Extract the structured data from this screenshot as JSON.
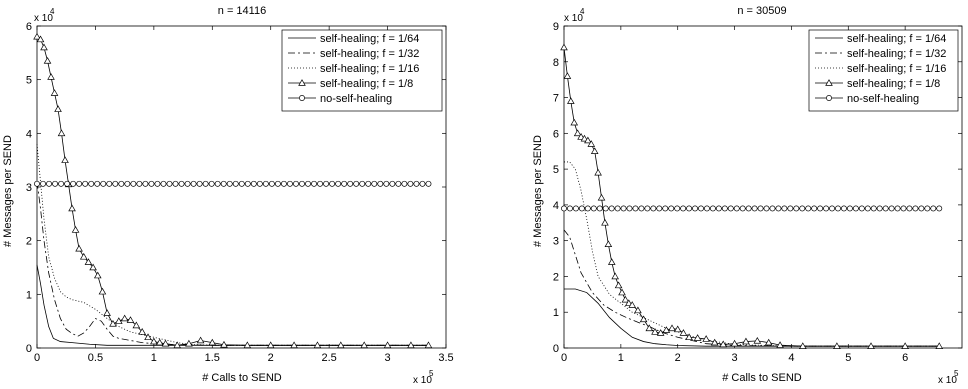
{
  "legend_entries": [
    "self-healing; f = 1/64",
    "self-healing; f = 1/32",
    "self-healing; f = 1/16",
    "self-healing; f = 1/8",
    "no-self-healing"
  ],
  "chart_data": [
    {
      "type": "line",
      "title": "n = 14116",
      "xlabel": "# Calls to SEND",
      "ylabel": "# Messages per SEND",
      "x_multiplier": "x 10",
      "x_multiplier_exp": "5",
      "y_multiplier": "x 10",
      "y_multiplier_exp": "4",
      "xlim": [
        0,
        3.5
      ],
      "ylim": [
        0,
        6
      ],
      "x_ticks": [
        "0",
        "0.5",
        "1",
        "1.5",
        "2",
        "2.5",
        "3",
        "3.5"
      ],
      "y_ticks": [
        "0",
        "1",
        "2",
        "3",
        "4",
        "5",
        "6"
      ],
      "legend_position": "top-right",
      "grid": false,
      "series": [
        {
          "name": "self-healing; f = 1/64",
          "style": "solid",
          "marker": "none",
          "x": [
            0,
            0.03,
            0.06,
            0.1,
            0.14,
            0.2,
            0.3,
            0.45,
            0.6,
            0.75,
            0.9,
            1.1,
            1.3,
            1.5,
            2,
            2.5,
            3,
            3.35
          ],
          "y": [
            1.55,
            1.2,
            0.8,
            0.4,
            0.18,
            0.12,
            0.1,
            0.07,
            0.05,
            0.05,
            0.05,
            0.05,
            0.05,
            0.05,
            0.05,
            0.05,
            0.05,
            0.05
          ]
        },
        {
          "name": "self-healing; f = 1/32",
          "style": "dashdot",
          "marker": "none",
          "x": [
            0,
            0.03,
            0.06,
            0.1,
            0.15,
            0.2,
            0.25,
            0.3,
            0.35,
            0.4,
            0.45,
            0.5,
            0.55,
            0.6,
            0.65,
            0.7,
            0.8,
            0.9,
            1.0,
            1.2,
            1.5,
            2,
            2.5,
            3,
            3.35
          ],
          "y": [
            3.1,
            2.6,
            2.0,
            1.4,
            0.9,
            0.55,
            0.35,
            0.27,
            0.22,
            0.28,
            0.4,
            0.55,
            0.5,
            0.35,
            0.22,
            0.18,
            0.14,
            0.1,
            0.08,
            0.06,
            0.05,
            0.05,
            0.05,
            0.05,
            0.05
          ]
        },
        {
          "name": "self-healing; f = 1/16",
          "style": "dotted",
          "marker": "none",
          "x": [
            0,
            0.03,
            0.06,
            0.1,
            0.15,
            0.2,
            0.25,
            0.3,
            0.4,
            0.5,
            0.6,
            0.7,
            0.8,
            0.9,
            1.0,
            1.1,
            1.2,
            1.3,
            1.5,
            2,
            2.5,
            3,
            3.35
          ],
          "y": [
            3.8,
            3.1,
            2.4,
            1.7,
            1.3,
            1.05,
            0.95,
            0.9,
            0.85,
            0.72,
            0.55,
            0.4,
            0.3,
            0.25,
            0.2,
            0.15,
            0.1,
            0.07,
            0.05,
            0.05,
            0.05,
            0.05,
            0.05
          ]
        },
        {
          "name": "self-healing; f = 1/8",
          "style": "solid",
          "marker": "triangle",
          "x": [
            0,
            0.03,
            0.06,
            0.09,
            0.12,
            0.15,
            0.18,
            0.21,
            0.24,
            0.27,
            0.3,
            0.33,
            0.36,
            0.4,
            0.44,
            0.48,
            0.52,
            0.56,
            0.6,
            0.65,
            0.7,
            0.75,
            0.8,
            0.85,
            0.9,
            0.95,
            1.0,
            1.05,
            1.1,
            1.2,
            1.3,
            1.4,
            1.5,
            1.6,
            1.8,
            2.0,
            2.2,
            2.4,
            2.6,
            2.8,
            3.0,
            3.2,
            3.35
          ],
          "y": [
            5.8,
            5.75,
            5.6,
            5.35,
            5.05,
            4.75,
            4.45,
            4.0,
            3.5,
            3.05,
            2.6,
            2.2,
            1.85,
            1.7,
            1.6,
            1.5,
            1.35,
            1.05,
            0.65,
            0.45,
            0.5,
            0.55,
            0.52,
            0.42,
            0.3,
            0.2,
            0.12,
            0.1,
            0.08,
            0.05,
            0.08,
            0.14,
            0.1,
            0.06,
            0.05,
            0.05,
            0.05,
            0.05,
            0.05,
            0.05,
            0.05,
            0.05,
            0.05
          ]
        },
        {
          "name": "no-self-healing",
          "style": "solid",
          "marker": "circle",
          "x": [
            0,
            3.35
          ],
          "y": [
            3.06,
            3.06
          ]
        }
      ]
    },
    {
      "type": "line",
      "title": "n = 30509",
      "xlabel": "# Calls to SEND",
      "ylabel": "# Messages per SEND",
      "x_multiplier": "x 10",
      "x_multiplier_exp": "5",
      "y_multiplier": "x 10",
      "y_multiplier_exp": "4",
      "xlim": [
        0,
        7
      ],
      "ylim": [
        0,
        9
      ],
      "x_ticks": [
        "0",
        "1",
        "2",
        "3",
        "4",
        "5",
        "6"
      ],
      "y_ticks": [
        "0",
        "1",
        "2",
        "3",
        "4",
        "5",
        "6",
        "7",
        "8",
        "9"
      ],
      "legend_position": "top-right",
      "grid": false,
      "series": [
        {
          "name": "self-healing; f = 1/64",
          "style": "solid",
          "marker": "none",
          "x": [
            0,
            0.2,
            0.4,
            0.6,
            0.8,
            1.0,
            1.2,
            1.4,
            1.6,
            1.8,
            2.0,
            2.5,
            3,
            4,
            5,
            6,
            6.6
          ],
          "y": [
            1.65,
            1.65,
            1.55,
            1.25,
            0.85,
            0.55,
            0.3,
            0.18,
            0.12,
            0.09,
            0.07,
            0.05,
            0.05,
            0.05,
            0.05,
            0.05,
            0.05
          ]
        },
        {
          "name": "self-healing; f = 1/32",
          "style": "dashdot",
          "marker": "none",
          "x": [
            0,
            0.1,
            0.2,
            0.3,
            0.5,
            0.7,
            0.9,
            1.1,
            1.3,
            1.5,
            1.7,
            2.0,
            2.5,
            3,
            4,
            5,
            6,
            6.6
          ],
          "y": [
            3.3,
            3.1,
            2.6,
            2.1,
            1.55,
            1.2,
            1.0,
            0.85,
            0.72,
            0.6,
            0.45,
            0.3,
            0.12,
            0.07,
            0.05,
            0.05,
            0.05,
            0.05
          ]
        },
        {
          "name": "self-healing; f = 1/16",
          "style": "dotted",
          "marker": "none",
          "x": [
            0,
            0.1,
            0.2,
            0.3,
            0.4,
            0.5,
            0.6,
            0.8,
            1.0,
            1.2,
            1.4,
            1.6,
            1.8,
            2.0,
            2.2,
            2.5,
            3,
            4,
            5,
            6,
            6.6
          ],
          "y": [
            5.2,
            5.2,
            5.0,
            4.4,
            3.6,
            2.7,
            2.0,
            1.5,
            1.25,
            1.0,
            0.85,
            0.7,
            0.55,
            0.45,
            0.35,
            0.22,
            0.1,
            0.05,
            0.05,
            0.05,
            0.05
          ]
        },
        {
          "name": "self-healing; f = 1/8",
          "style": "solid",
          "marker": "triangle",
          "x": [
            0,
            0.06,
            0.12,
            0.18,
            0.24,
            0.3,
            0.36,
            0.42,
            0.48,
            0.54,
            0.6,
            0.66,
            0.72,
            0.78,
            0.84,
            0.9,
            0.96,
            1.02,
            1.08,
            1.14,
            1.2,
            1.3,
            1.4,
            1.5,
            1.6,
            1.7,
            1.8,
            1.9,
            2.0,
            2.1,
            2.2,
            2.35,
            2.5,
            2.65,
            2.8,
            3.0,
            3.2,
            3.4,
            3.6,
            3.8,
            4.2,
            4.8,
            5.4,
            6.0,
            6.6
          ],
          "y": [
            8.4,
            7.6,
            6.9,
            6.3,
            6.0,
            5.9,
            5.85,
            5.8,
            5.7,
            5.5,
            4.9,
            4.2,
            3.5,
            2.9,
            2.4,
            2.0,
            1.75,
            1.55,
            1.35,
            1.25,
            1.2,
            1.05,
            0.8,
            0.55,
            0.45,
            0.42,
            0.5,
            0.55,
            0.52,
            0.42,
            0.3,
            0.28,
            0.25,
            0.15,
            0.1,
            0.12,
            0.18,
            0.2,
            0.15,
            0.08,
            0.05,
            0.05,
            0.05,
            0.05,
            0.05
          ]
        },
        {
          "name": "no-self-healing",
          "style": "solid",
          "marker": "circle",
          "x": [
            0,
            6.6
          ],
          "y": [
            3.9,
            3.9
          ]
        }
      ]
    }
  ]
}
